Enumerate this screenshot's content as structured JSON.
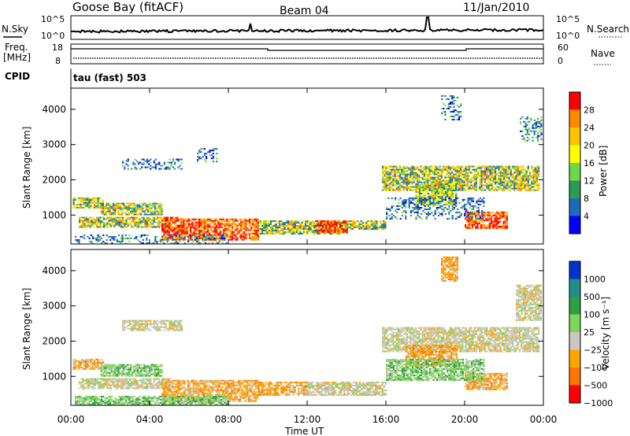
{
  "header": {
    "station": "Goose Bay (fitACF)",
    "beam": "Beam 04",
    "date": "11/Jan/2010"
  },
  "top_panels": {
    "nsky_label": "N.Sky",
    "nsky_ticks": [
      "10^5",
      "10^0"
    ],
    "nsearch_label": "N.Search",
    "nsearch_ticks": [
      "10^5",
      "10^0"
    ],
    "freq_label": "Freq.",
    "freq_unit": "[MHz]",
    "freq_ticks": [
      "18",
      "8"
    ],
    "nave_label": "Nave",
    "nave_ticks": [
      "60",
      "0"
    ],
    "cpid_label": "CPID",
    "cpid_value": "tau (fast) 503"
  },
  "chart_data": [
    {
      "type": "heatmap",
      "panel": "power",
      "ylabel": "Slant Range [km]",
      "colorbar_label": "Power [dB]",
      "colorbar_ticks": [
        "28",
        "24",
        "20",
        "16",
        "12",
        "8",
        "4"
      ],
      "colorbar_colors": [
        "#ff0000",
        "#ff8a00",
        "#ffc400",
        "#ffff00",
        "#6fd84a",
        "#2a9a55",
        "#1e6ab8",
        "#0000ff"
      ],
      "y_ticks": [
        "1000",
        "2000",
        "3000",
        "4000"
      ],
      "ylim": [
        180,
        4600
      ],
      "x_ticks": [
        "00:00",
        "04:00",
        "08:00",
        "12:00",
        "16:00",
        "20:00",
        "00:00"
      ],
      "xlim": [
        0,
        24
      ],
      "regions": [
        {
          "t0": 0.1,
          "t1": 1.6,
          "r0": 1200,
          "r1": 1500,
          "level": "mid"
        },
        {
          "t0": 1.5,
          "t1": 4.6,
          "r0": 1000,
          "r1": 1350,
          "level": "mid"
        },
        {
          "t0": 0.4,
          "t1": 5.0,
          "r0": 650,
          "r1": 950,
          "level": "mid"
        },
        {
          "t0": 4.6,
          "t1": 5.6,
          "r0": 300,
          "r1": 950,
          "level": "high"
        },
        {
          "t0": 5.6,
          "t1": 9.5,
          "r0": 300,
          "r1": 900,
          "level": "high"
        },
        {
          "t0": 9.5,
          "t1": 14.0,
          "r0": 450,
          "r1": 850,
          "level": "mid"
        },
        {
          "t0": 12.4,
          "t1": 14.0,
          "r0": 500,
          "r1": 850,
          "level": "high"
        },
        {
          "t0": 14.0,
          "t1": 16.0,
          "r0": 600,
          "r1": 850,
          "level": "mid"
        },
        {
          "t0": 15.8,
          "t1": 23.8,
          "r0": 1700,
          "r1": 2400,
          "level": "mid"
        },
        {
          "t0": 17.5,
          "t1": 19.6,
          "r0": 1300,
          "r1": 1900,
          "level": "mid"
        },
        {
          "t0": 20.0,
          "t1": 22.2,
          "r0": 650,
          "r1": 1100,
          "level": "high"
        },
        {
          "t0": 18.8,
          "t1": 19.8,
          "r0": 3700,
          "r1": 4400,
          "level": "low"
        },
        {
          "t0": 22.8,
          "t1": 23.9,
          "r0": 3100,
          "r1": 3800,
          "level": "low"
        },
        {
          "t0": 2.6,
          "t1": 5.6,
          "r0": 2300,
          "r1": 2600,
          "level": "low"
        },
        {
          "t0": 6.4,
          "t1": 7.4,
          "r0": 2500,
          "r1": 2900,
          "level": "low"
        },
        {
          "t0": 0.2,
          "t1": 8.0,
          "r0": 200,
          "r1": 450,
          "level": "low"
        },
        {
          "t0": 16.0,
          "t1": 21.0,
          "r0": 900,
          "r1": 1500,
          "level": "low"
        }
      ]
    },
    {
      "type": "heatmap",
      "panel": "velocity",
      "ylabel": "Slant Range [km]",
      "colorbar_label": "Velocity [m s⁻¹]",
      "colorbar_ticks": [
        "1000",
        "500",
        "100",
        "25",
        "−25",
        "−100",
        "−500",
        "−1000"
      ],
      "colorbar_colors": [
        "#0033cc",
        "#1f8f88",
        "#2e9f3e",
        "#7fd45a",
        "#c8c8c0",
        "#ffa400",
        "#ff7600",
        "#ff0000"
      ],
      "y_ticks": [
        "1000",
        "2000",
        "3000",
        "4000"
      ],
      "ylim": [
        180,
        4600
      ],
      "x_ticks": [
        "00:00",
        "04:00",
        "08:00",
        "12:00",
        "16:00",
        "20:00",
        "00:00"
      ],
      "xlim": [
        0,
        24
      ],
      "xlabel": "Time UT",
      "regions": [
        {
          "t0": 0.1,
          "t1": 1.6,
          "r0": 1200,
          "r1": 1500,
          "level": "neg"
        },
        {
          "t0": 1.5,
          "t1": 4.6,
          "r0": 1000,
          "r1": 1350,
          "level": "pos"
        },
        {
          "t0": 0.4,
          "t1": 5.0,
          "r0": 650,
          "r1": 950,
          "level": "gray"
        },
        {
          "t0": 4.6,
          "t1": 9.5,
          "r0": 300,
          "r1": 900,
          "level": "neg"
        },
        {
          "t0": 9.5,
          "t1": 12.0,
          "r0": 450,
          "r1": 850,
          "level": "neg"
        },
        {
          "t0": 12.0,
          "t1": 16.0,
          "r0": 450,
          "r1": 850,
          "level": "gray"
        },
        {
          "t0": 15.8,
          "t1": 23.8,
          "r0": 1700,
          "r1": 2400,
          "level": "gray"
        },
        {
          "t0": 17.0,
          "t1": 19.6,
          "r0": 1300,
          "r1": 1900,
          "level": "neg"
        },
        {
          "t0": 20.0,
          "t1": 22.2,
          "r0": 650,
          "r1": 1100,
          "level": "neg"
        },
        {
          "t0": 18.8,
          "t1": 19.6,
          "r0": 3700,
          "r1": 4400,
          "level": "neg"
        },
        {
          "t0": 22.6,
          "t1": 23.9,
          "r0": 2600,
          "r1": 3600,
          "level": "gray"
        },
        {
          "t0": 2.6,
          "t1": 5.6,
          "r0": 2300,
          "r1": 2600,
          "level": "gray"
        },
        {
          "t0": 16.0,
          "t1": 21.0,
          "r0": 900,
          "r1": 1500,
          "level": "pos"
        },
        {
          "t0": 0.2,
          "t1": 8.0,
          "r0": 200,
          "r1": 450,
          "level": "pos"
        }
      ]
    }
  ]
}
